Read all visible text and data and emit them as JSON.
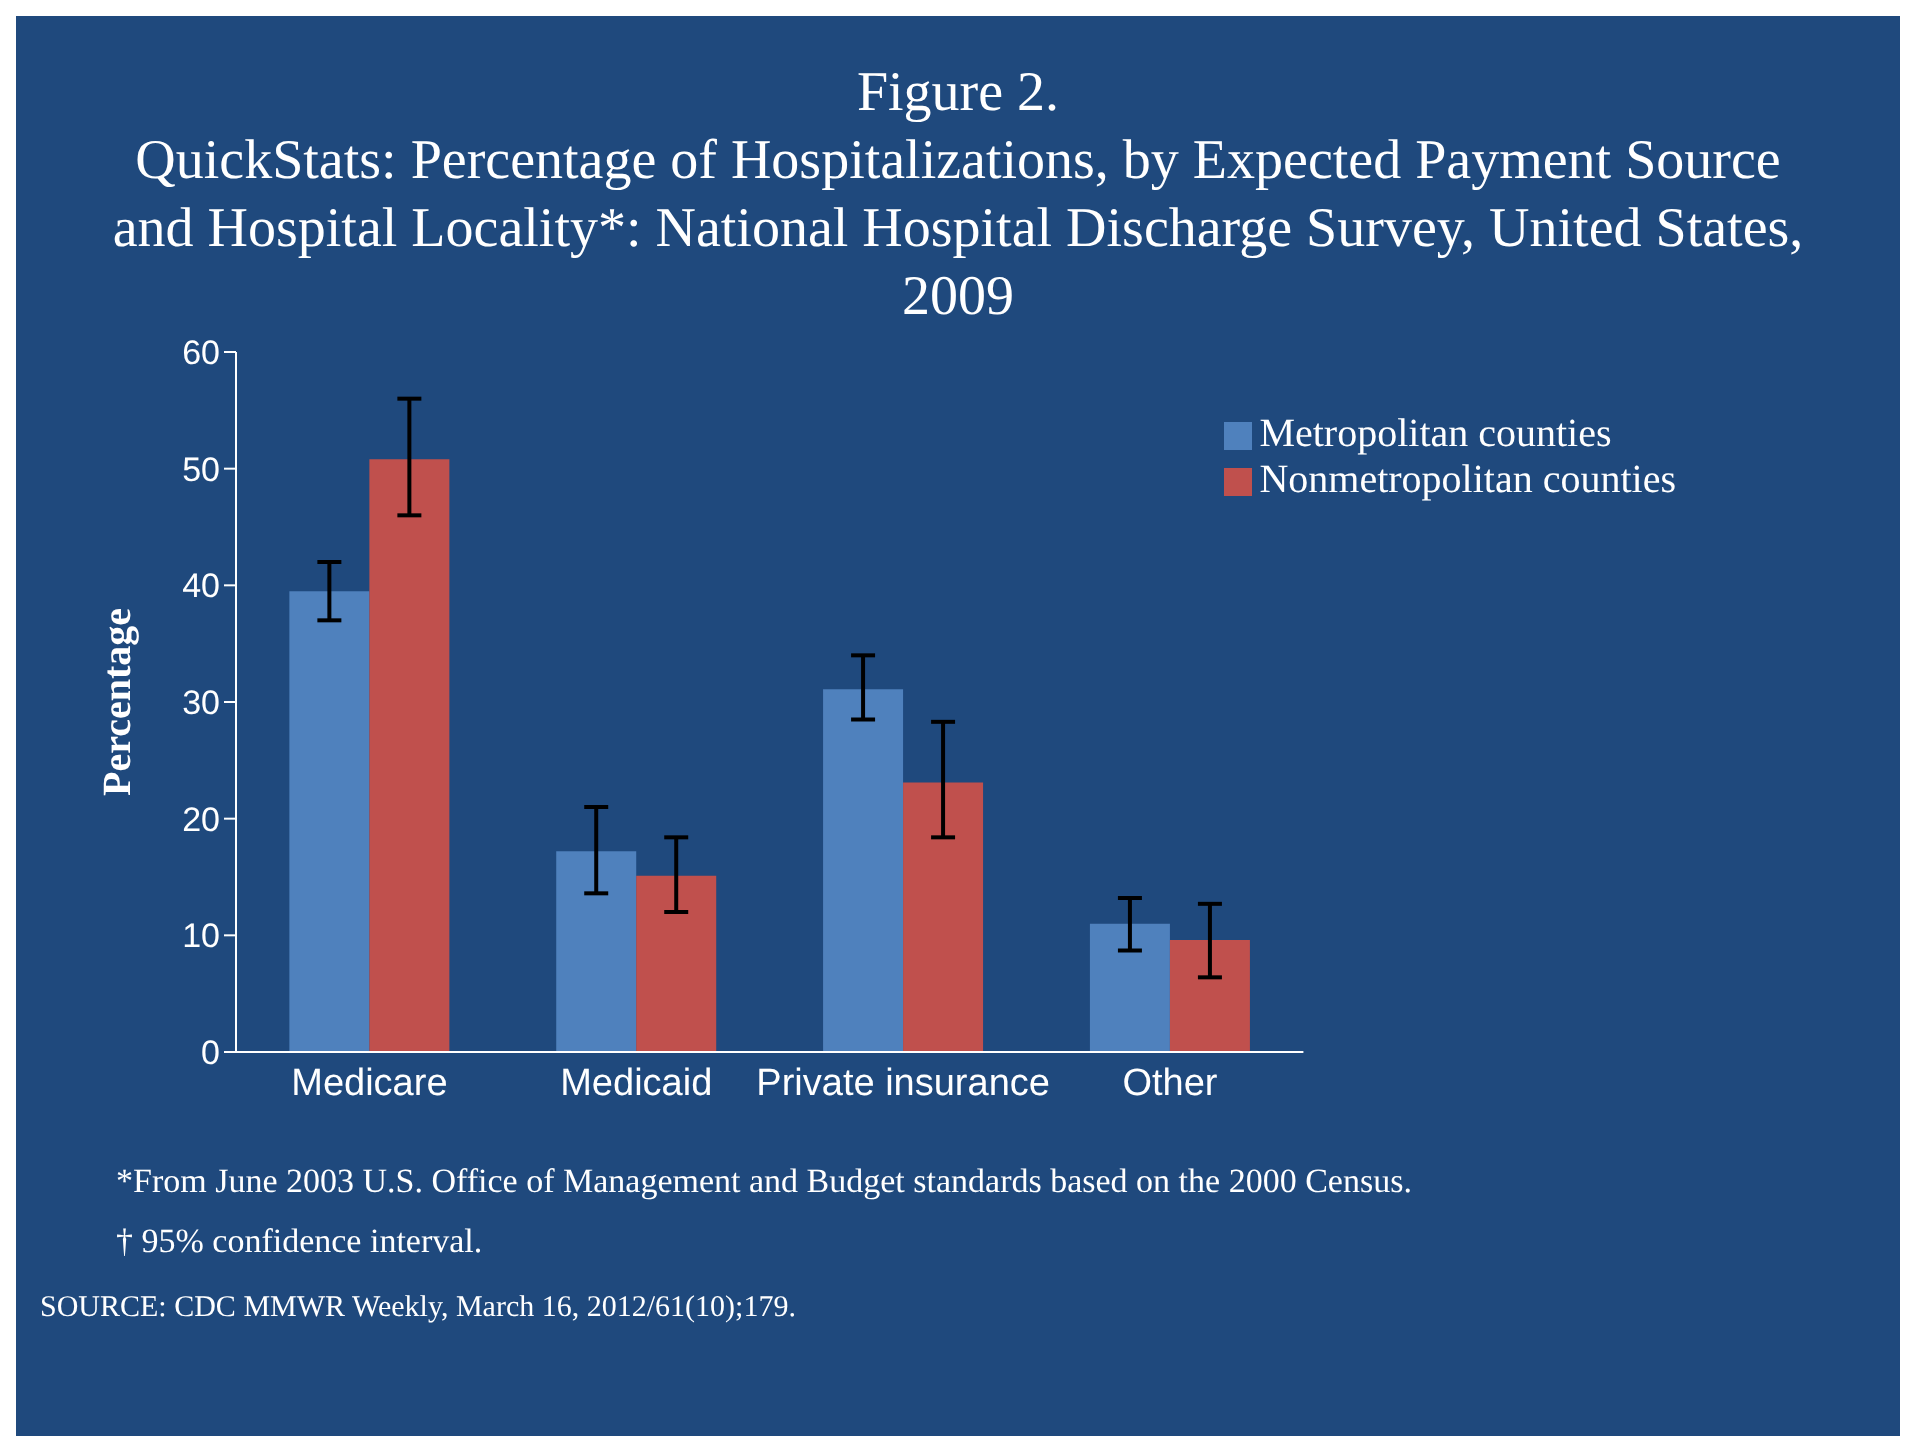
{
  "chart_data": {
    "type": "bar",
    "title": "Figure 2.",
    "subtitle": "QuickStats: Percentage of Hospitalizations, by Expected Payment Source and Hospital Locality*: National Hospital Discharge Survey, United States, 2009",
    "ylabel": "Percentage",
    "categories": [
      "Medicare",
      "Medicaid",
      "Private insurance",
      "Other"
    ],
    "series": [
      {
        "name": "Metropolitan counties",
        "color": "#4f81bd",
        "values": [
          39.5,
          17.2,
          31.1,
          11
        ],
        "errors": [
          [
            37,
            42
          ],
          [
            13.6,
            21
          ],
          [
            28.5,
            34
          ],
          [
            8.7,
            13.2
          ]
        ]
      },
      {
        "name": "Nonmetropolitan counties",
        "color": "#c0504d",
        "values": [
          50.8,
          15.1,
          23.1,
          9.6
        ],
        "errors": [
          [
            46,
            56
          ],
          [
            12,
            18.4
          ],
          [
            18.4,
            28.3
          ],
          [
            6.4,
            12.7
          ]
        ]
      }
    ],
    "ylim": [
      0,
      60
    ],
    "yticks": [
      0,
      10,
      20,
      30,
      40,
      50,
      60
    ],
    "grid": false,
    "legend": "top right",
    "annotations": [
      "*From June 2003 U.S. Office of Management and Budget standards based on the 2000 Census.",
      "† 95% confidence interval.",
      "SOURCE: CDC MMWR Weekly, March 16, 2012/61(10);179."
    ]
  }
}
